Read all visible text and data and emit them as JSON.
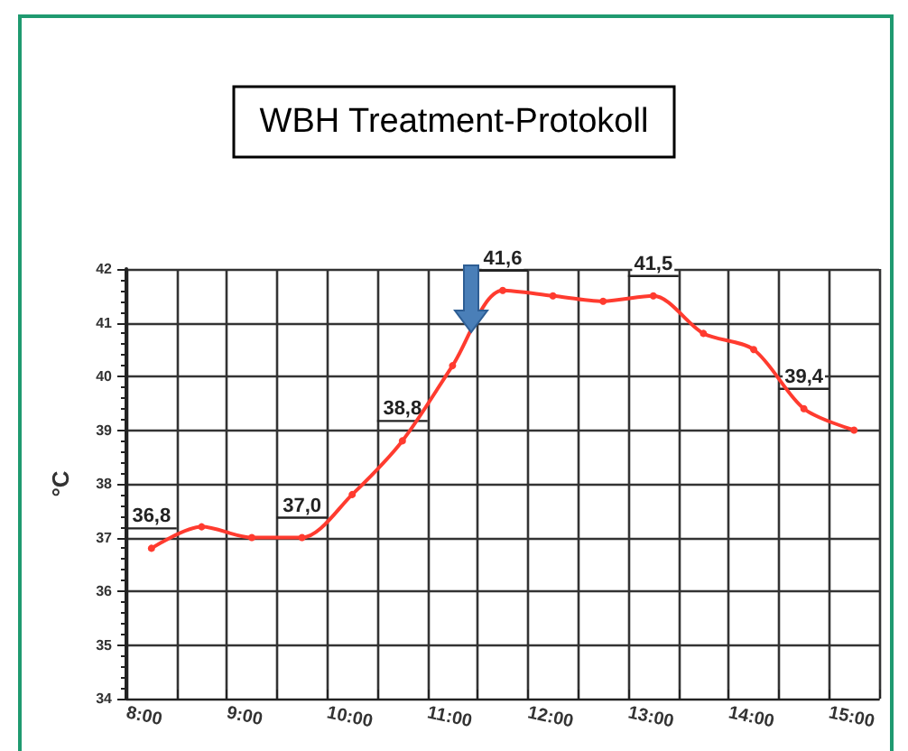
{
  "chart_data": {
    "type": "line",
    "title": "WBH Treatment-Protokoll",
    "ylabel": "°C",
    "x": [
      8.25,
      8.75,
      9.25,
      9.75,
      10.25,
      10.75,
      11.25,
      11.75,
      12.25,
      12.75,
      13.25,
      13.75,
      14.25,
      14.75,
      15.25
    ],
    "series": [
      {
        "color": "#ff3b2f",
        "values": [
          36.8,
          37.2,
          37.0,
          37.0,
          37.8,
          38.8,
          40.2,
          41.6,
          41.5,
          41.4,
          41.5,
          40.8,
          40.5,
          39.4,
          39.0
        ]
      }
    ],
    "xlim": [
      8,
      15.5
    ],
    "xticks": [
      {
        "value": 8,
        "label": "8:00"
      },
      {
        "value": 8.5,
        "label": null
      },
      {
        "value": 9,
        "label": "9:00"
      },
      {
        "value": 9.5,
        "label": null
      },
      {
        "value": 10,
        "label": "10:00"
      },
      {
        "value": 10.5,
        "label": null
      },
      {
        "value": 11,
        "label": "11:00"
      },
      {
        "value": 11.5,
        "label": null
      },
      {
        "value": 12,
        "label": "12:00"
      },
      {
        "value": 12.5,
        "label": null
      },
      {
        "value": 13,
        "label": "13:00"
      },
      {
        "value": 13.5,
        "label": null
      },
      {
        "value": 14,
        "label": "14:00"
      },
      {
        "value": 14.5,
        "label": null
      },
      {
        "value": 15,
        "label": "15:00"
      },
      {
        "value": 15.5,
        "label": null
      }
    ],
    "ylim": [
      34,
      42
    ],
    "yticks": [
      34,
      35,
      36,
      37,
      38,
      39,
      40,
      41,
      42
    ],
    "annotations": [
      {
        "text": "36,8",
        "x": 8.25,
        "y": 36.8
      },
      {
        "text": "37,0",
        "x": 9.75,
        "y": 37.0
      },
      {
        "text": "38,8",
        "x": 10.75,
        "y": 38.8
      },
      {
        "text": "41,6",
        "x": 11.75,
        "y": 41.6
      },
      {
        "text": "41,5",
        "x": 13.25,
        "y": 41.5
      },
      {
        "text": "39,4",
        "x": 14.75,
        "y": 39.4
      }
    ],
    "grid": true,
    "marker": "circle",
    "line_style": "solid"
  }
}
